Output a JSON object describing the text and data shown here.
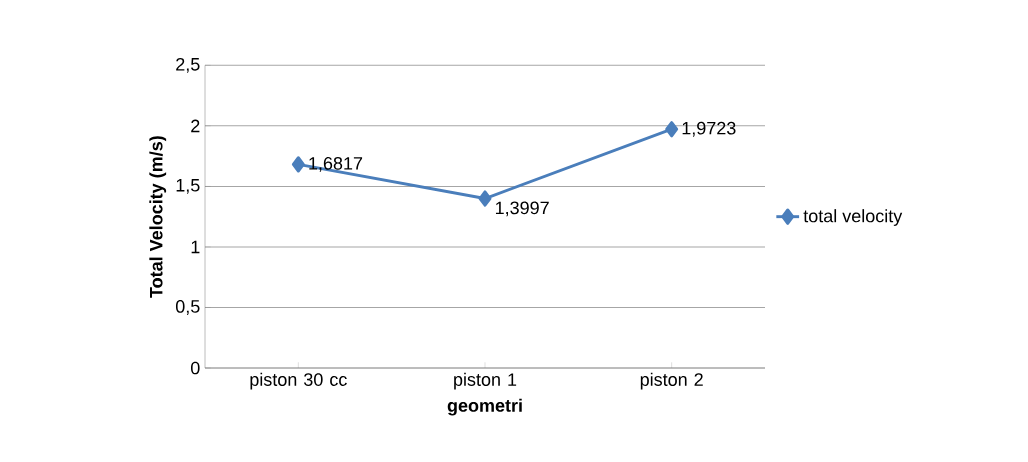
{
  "chart_data": {
    "type": "line",
    "xlabel": "geometri",
    "ylabel": "Total Velocity (m/s)",
    "categories": [
      "piston 30 cc",
      "piston 1",
      "piston 2"
    ],
    "series": [
      {
        "name": "total velocity",
        "color": "#4a7ebb",
        "values": [
          1.6817,
          1.3997,
          1.9723
        ],
        "value_labels": [
          "1,6817",
          "1,3997",
          "1,9723"
        ]
      }
    ],
    "ylim": [
      0,
      2.5
    ],
    "yticks": [
      0,
      {
        "value": 0.5,
        "label": "0,5"
      },
      1,
      {
        "value": 1.5,
        "label": "1,5"
      },
      2,
      {
        "value": 2.5,
        "label": "2,5"
      }
    ],
    "grid": "y",
    "legend": "right",
    "marker": "diamond",
    "line_style": "solid"
  }
}
